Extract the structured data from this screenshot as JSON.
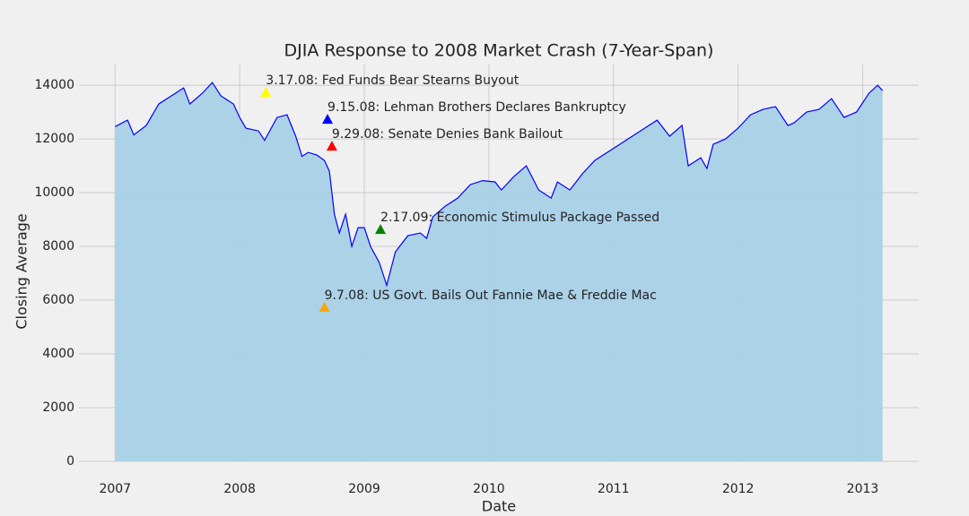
{
  "chart_data": {
    "type": "area",
    "title": "DJIA Response to 2008 Market Crash (7-Year-Span)",
    "xlabel": "Date",
    "ylabel": "Closing Average",
    "line_color": "#0000ff",
    "fill_color": "#a8d0e6",
    "x": [
      2007.0,
      2007.1,
      2007.15,
      2007.25,
      2007.35,
      2007.45,
      2007.55,
      2007.6,
      2007.7,
      2007.78,
      2007.85,
      2007.95,
      2008.0,
      2008.05,
      2008.15,
      2008.2,
      2008.3,
      2008.38,
      2008.45,
      2008.5,
      2008.55,
      2008.62,
      2008.68,
      2008.72,
      2008.76,
      2008.8,
      2008.85,
      2008.9,
      2008.95,
      2009.0,
      2009.05,
      2009.12,
      2009.18,
      2009.25,
      2009.35,
      2009.45,
      2009.5,
      2009.55,
      2009.65,
      2009.75,
      2009.85,
      2009.95,
      2010.05,
      2010.1,
      2010.2,
      2010.3,
      2010.4,
      2010.5,
      2010.55,
      2010.65,
      2010.75,
      2010.85,
      2010.95,
      2011.05,
      2011.15,
      2011.25,
      2011.35,
      2011.45,
      2011.55,
      2011.6,
      2011.7,
      2011.75,
      2011.8,
      2011.9,
      2012.0,
      2012.1,
      2012.2,
      2012.3,
      2012.4,
      2012.45,
      2012.55,
      2012.65,
      2012.75,
      2012.85,
      2012.95,
      2013.05,
      2013.12,
      2013.16
    ],
    "values": [
      12460,
      12700,
      12150,
      12500,
      13300,
      13600,
      13900,
      13300,
      13700,
      14100,
      13600,
      13300,
      12800,
      12400,
      12300,
      11950,
      12800,
      12900,
      12100,
      11350,
      11500,
      11400,
      11200,
      10800,
      9200,
      8500,
      9200,
      8000,
      8700,
      8700,
      8000,
      7400,
      6550,
      7800,
      8400,
      8500,
      8300,
      9100,
      9500,
      9800,
      10300,
      10450,
      10400,
      10100,
      10600,
      11000,
      10100,
      9800,
      10400,
      10100,
      10700,
      11200,
      11500,
      11800,
      12100,
      12400,
      12700,
      12100,
      12500,
      11000,
      11300,
      10900,
      11800,
      12000,
      12400,
      12900,
      13100,
      13200,
      12500,
      12600,
      13000,
      13100,
      13500,
      12800,
      13000,
      13700,
      14000,
      13800
    ],
    "annotations": [
      {
        "text": "3.17.08: Fed Funds Bear Stearns Buyout",
        "x": 2008.21,
        "y": 13733,
        "color": "#ffff00"
      },
      {
        "text": "9.15.08: Lehman Brothers Declares Bankruptcy",
        "x": 2008.705,
        "y": 12733,
        "color": "#0000ff"
      },
      {
        "text": "9.29.08: Senate Denies Bank Bailout",
        "x": 2008.74,
        "y": 11733,
        "color": "#ff0000"
      },
      {
        "text": "2.17.09: Economic Stimulus Package Passed",
        "x": 2009.13,
        "y": 8633,
        "color": "#008000"
      },
      {
        "text": "9.7.08: US Govt. Bails Out Fannie Mae & Freddie Mac",
        "x": 2008.68,
        "y": 5733,
        "color": "#ffa500"
      }
    ],
    "xlim": [
      2006.71,
      2013.45
    ],
    "ylim": [
      0,
      14770
    ],
    "xticks": [
      2007,
      2008,
      2009,
      2010,
      2011,
      2012,
      2013
    ],
    "yticks": [
      0,
      2000,
      4000,
      6000,
      8000,
      10000,
      12000,
      14000
    ],
    "grid": true
  }
}
